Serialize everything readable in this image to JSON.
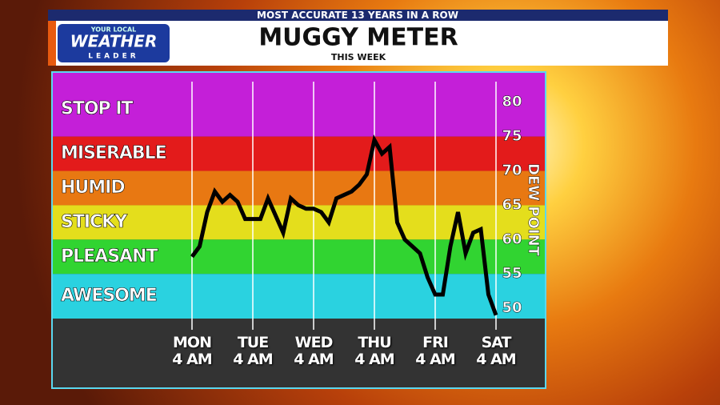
{
  "header": {
    "banner": "MOST ACCURATE 13 YEARS IN A ROW",
    "logo_top": "YOUR LOCAL",
    "logo_main": "WEATHER",
    "logo_bottom": "LEADER"
  },
  "chart_data": {
    "type": "line",
    "title": "MUGGY METER",
    "subtitle": "THIS WEEK",
    "y_label": "DEW POINT",
    "categories": [
      "MON\n4 AM",
      null,
      null,
      null,
      null,
      null,
      null,
      null,
      "TUE\n4 AM",
      null,
      null,
      null,
      null,
      null,
      null,
      null,
      "WED\n4 AM",
      null,
      null,
      null,
      null,
      null,
      null,
      null,
      "THU\n4 AM",
      null,
      null,
      null,
      null,
      null,
      null,
      null,
      "FRI\n4 AM",
      null,
      null,
      null,
      null,
      null,
      null,
      null,
      "SAT\n4 AM"
    ],
    "series": [
      {
        "name": "Dew point",
        "color": "#000000",
        "values": [
          57.5,
          59,
          64,
          67,
          65.5,
          66.5,
          65.5,
          63,
          63,
          63,
          66,
          63.5,
          61,
          66,
          65,
          64.5,
          64.5,
          64,
          62.5,
          66,
          66.5,
          67,
          68,
          69.5,
          74.5,
          72.5,
          73.5,
          62.5,
          60,
          59,
          58,
          54.5,
          52,
          52,
          59,
          64,
          58,
          61,
          61.5,
          52,
          49
        ]
      }
    ],
    "bands": [
      {
        "label": "STOP IT",
        "from": 75,
        "to": 83,
        "color": "#c41fd8"
      },
      {
        "label": "MISERABLE",
        "from": 70,
        "to": 75,
        "color": "#e31b1b"
      },
      {
        "label": "HUMID",
        "from": 65,
        "to": 70,
        "color": "#e87812"
      },
      {
        "label": "STICKY",
        "from": 60,
        "to": 65,
        "color": "#e4de1c"
      },
      {
        "label": "PLEASANT",
        "from": 55,
        "to": 60,
        "color": "#31d431"
      },
      {
        "label": "AWESOME",
        "from": 48.5,
        "to": 55,
        "color": "#2ad2e0"
      }
    ],
    "ylim": [
      48.5,
      83
    ],
    "yticks": [
      50,
      55,
      60,
      65,
      70,
      75,
      80
    ],
    "grid": true
  }
}
